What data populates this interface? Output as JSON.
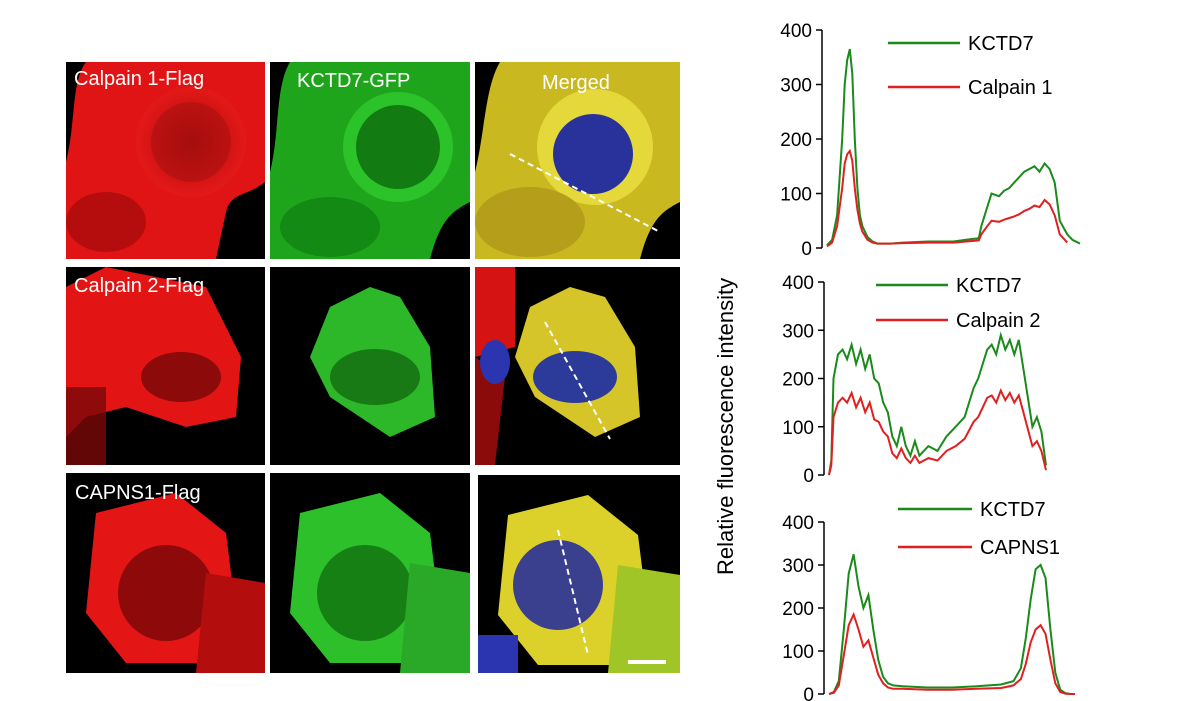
{
  "figure": {
    "rows": [
      {
        "labels": [
          "Calpain 1-Flag",
          "KCTD7-GFP",
          "Merged"
        ]
      },
      {
        "labels": [
          "Calpain 2-Flag",
          "",
          ""
        ]
      },
      {
        "labels": [
          "CAPNS1-Flag",
          "",
          ""
        ]
      }
    ],
    "colors": {
      "red_channel": "#e01010",
      "green_channel": "#22c01e",
      "kctd7_line": "#1a8a1a",
      "calpain_line": "#e02020"
    }
  },
  "chart_data": [
    {
      "type": "line",
      "title": "",
      "ylabel": "Relative fluorescence intensity",
      "ylim": [
        0,
        400
      ],
      "yticks": [
        "400",
        "300",
        "200",
        "100",
        "0"
      ],
      "legend": "top-right",
      "series": [
        {
          "name": "KCTD7",
          "x": [
            0,
            2,
            4,
            6,
            7,
            8,
            9,
            10,
            11,
            12,
            13,
            14,
            16,
            18,
            20,
            25,
            30,
            40,
            50,
            55,
            60,
            61,
            63,
            65,
            68,
            70,
            72,
            74,
            76,
            78,
            80,
            82,
            84,
            86,
            88,
            90,
            92,
            95,
            97,
            100
          ],
          "values": [
            5,
            15,
            60,
            200,
            300,
            345,
            365,
            320,
            200,
            110,
            60,
            40,
            20,
            12,
            8,
            8,
            10,
            12,
            12,
            15,
            18,
            40,
            70,
            100,
            95,
            105,
            110,
            120,
            130,
            140,
            145,
            150,
            140,
            155,
            145,
            120,
            50,
            25,
            15,
            8
          ]
        },
        {
          "name": "Calpain 1",
          "x": [
            0,
            2,
            4,
            6,
            7,
            8,
            9,
            10,
            11,
            12,
            13,
            14,
            16,
            18,
            20,
            25,
            30,
            40,
            50,
            55,
            60,
            61,
            63,
            65,
            68,
            70,
            72,
            74,
            76,
            78,
            80,
            82,
            84,
            86,
            88,
            90,
            92,
            95
          ],
          "values": [
            3,
            10,
            40,
            110,
            155,
            172,
            178,
            160,
            110,
            70,
            45,
            30,
            15,
            10,
            8,
            8,
            9,
            10,
            10,
            12,
            14,
            25,
            38,
            50,
            48,
            52,
            55,
            58,
            62,
            68,
            72,
            78,
            75,
            88,
            80,
            60,
            25,
            10
          ]
        }
      ]
    },
    {
      "type": "line",
      "title": "",
      "ylabel": "Relative fluorescence intensity",
      "ylim": [
        0,
        400
      ],
      "yticks": [
        "400",
        "300",
        "200",
        "100",
        "0"
      ],
      "legend": "top-right",
      "series": [
        {
          "name": "KCTD7",
          "x": [
            0,
            1,
            2,
            4,
            6,
            8,
            10,
            12,
            14,
            16,
            18,
            20,
            22,
            24,
            26,
            28,
            30,
            32,
            34,
            36,
            38,
            40,
            44,
            48,
            52,
            56,
            60,
            64,
            66,
            68,
            70,
            72,
            74,
            76,
            78,
            80,
            82,
            84,
            86,
            88,
            90,
            92,
            94,
            96
          ],
          "values": [
            0,
            30,
            200,
            250,
            260,
            240,
            270,
            230,
            260,
            220,
            250,
            200,
            190,
            150,
            130,
            80,
            60,
            100,
            60,
            40,
            70,
            40,
            60,
            50,
            80,
            100,
            120,
            180,
            200,
            230,
            260,
            270,
            250,
            290,
            260,
            280,
            250,
            280,
            220,
            160,
            100,
            120,
            90,
            20
          ]
        },
        {
          "name": "Calpain 2",
          "x": [
            0,
            1,
            2,
            4,
            6,
            8,
            10,
            12,
            14,
            16,
            18,
            20,
            22,
            24,
            26,
            28,
            30,
            32,
            34,
            36,
            38,
            40,
            44,
            48,
            52,
            56,
            60,
            64,
            66,
            68,
            70,
            72,
            74,
            76,
            78,
            80,
            82,
            84,
            86,
            88,
            90,
            92,
            94,
            96
          ],
          "values": [
            0,
            20,
            120,
            150,
            160,
            150,
            170,
            140,
            160,
            130,
            150,
            115,
            110,
            90,
            80,
            45,
            35,
            55,
            35,
            25,
            40,
            25,
            35,
            30,
            50,
            60,
            75,
            110,
            120,
            140,
            160,
            165,
            150,
            175,
            155,
            170,
            150,
            165,
            130,
            95,
            60,
            70,
            50,
            10
          ]
        }
      ]
    },
    {
      "type": "line",
      "title": "",
      "ylabel": "Relative fluorescence intensity",
      "ylim": [
        0,
        400
      ],
      "yticks": [
        "400",
        "300",
        "200",
        "100",
        "0"
      ],
      "legend": "top-right",
      "series": [
        {
          "name": "KCTD7",
          "x": [
            0,
            2,
            4,
            6,
            8,
            10,
            12,
            14,
            16,
            18,
            20,
            22,
            24,
            26,
            30,
            40,
            50,
            60,
            70,
            75,
            78,
            80,
            82,
            84,
            86,
            88,
            90,
            92,
            94,
            96,
            98,
            100
          ],
          "values": [
            0,
            5,
            30,
            150,
            280,
            325,
            250,
            200,
            230,
            150,
            80,
            40,
            25,
            20,
            18,
            15,
            15,
            18,
            22,
            30,
            60,
            130,
            220,
            290,
            300,
            270,
            150,
            50,
            10,
            2,
            0,
            0
          ]
        },
        {
          "name": "CAPNS1",
          "x": [
            0,
            2,
            4,
            6,
            8,
            10,
            12,
            14,
            16,
            18,
            20,
            22,
            24,
            26,
            30,
            40,
            50,
            60,
            70,
            75,
            78,
            80,
            82,
            84,
            86,
            88,
            90,
            92,
            94,
            96,
            98,
            100
          ],
          "values": [
            0,
            3,
            20,
            90,
            160,
            185,
            150,
            110,
            125,
            85,
            45,
            25,
            15,
            12,
            12,
            10,
            10,
            12,
            14,
            20,
            35,
            70,
            120,
            150,
            160,
            140,
            80,
            25,
            5,
            1,
            0,
            0
          ]
        }
      ]
    }
  ]
}
